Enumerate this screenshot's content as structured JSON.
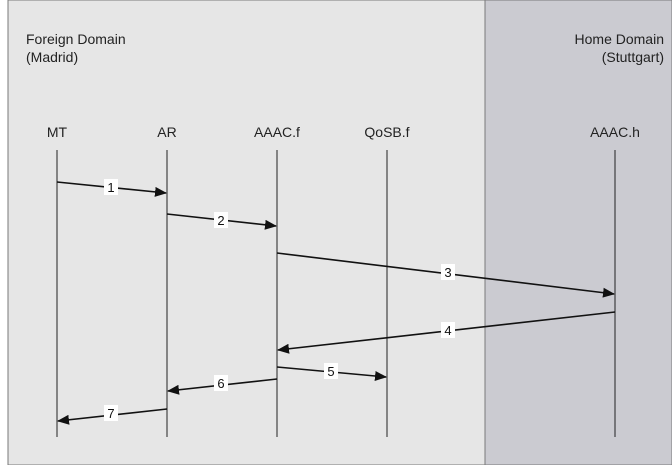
{
  "domains": {
    "foreign": {
      "line1": "Foreign Domain",
      "line2": "(Madrid)",
      "color": "#e6e6e6"
    },
    "home": {
      "line1": "Home Domain",
      "line2": "(Stuttgart)",
      "color": "#cbcbd1"
    }
  },
  "entities": [
    {
      "id": "mt",
      "label": "MT"
    },
    {
      "id": "ar",
      "label": "AR"
    },
    {
      "id": "aaac-f",
      "label": "AAAC.f"
    },
    {
      "id": "qosb-f",
      "label": "QoSB.f"
    },
    {
      "id": "aaac-h",
      "label": "AAAC.h"
    }
  ],
  "messages": [
    {
      "label": "1",
      "from": "mt",
      "to": "ar"
    },
    {
      "label": "2",
      "from": "ar",
      "to": "aaac-f"
    },
    {
      "label": "3",
      "from": "aaac-f",
      "to": "aaac-h"
    },
    {
      "label": "4",
      "from": "aaac-h",
      "to": "aaac-f"
    },
    {
      "label": "5",
      "from": "aaac-f",
      "to": "qosb-f"
    },
    {
      "label": "6",
      "from": "aaac-f",
      "to": "ar"
    },
    {
      "label": "7",
      "from": "ar",
      "to": "mt"
    }
  ]
}
